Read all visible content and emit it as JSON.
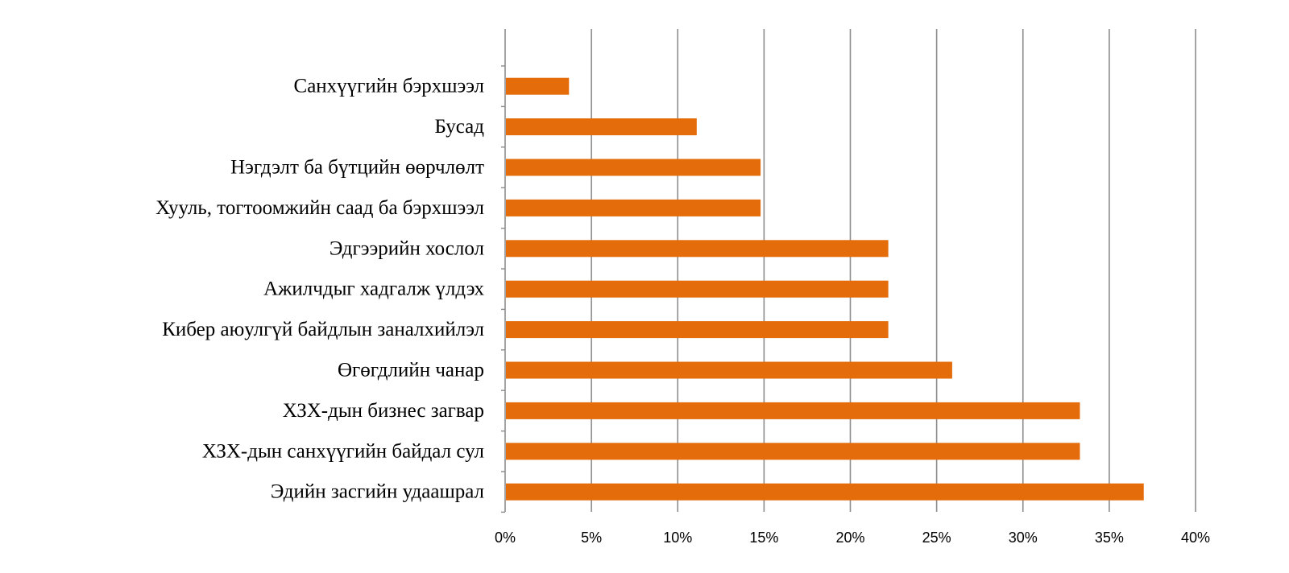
{
  "chart_data": {
    "type": "bar",
    "orientation": "horizontal",
    "title": "",
    "xlabel": "",
    "ylabel": "",
    "categories": [
      "Санхүүгийн бэрхшээл",
      "Бусад",
      "Нэгдэлт ба бүтцийн өөрчлөлт",
      "Хууль, тогтоомжийн саад ба бэрхшээл",
      "Эдгээрийн хослол",
      "Ажилчдыг хадгалж үлдэх",
      "Кибер аюулгүй байдлын заналхийлэл",
      "Өгөгдлийн чанар",
      "ХЗХ-дын бизнес загвар",
      "ХЗХ-дын санхүүгийн байдал сул",
      "Эдийн засгийн удаашрал"
    ],
    "series": [
      {
        "values": [
          3.7,
          11.1,
          14.8,
          14.8,
          22.2,
          22.2,
          22.2,
          25.9,
          33.3,
          33.3,
          37.0
        ],
        "color": "#e46c0a"
      }
    ],
    "xlim": [
      0,
      40
    ],
    "x_ticks": [
      "0%",
      "5%",
      "10%",
      "15%",
      "20%",
      "25%",
      "30%",
      "35%",
      "40%"
    ],
    "x_tick_values": [
      0,
      5,
      10,
      15,
      20,
      25,
      30,
      35,
      40
    ],
    "grid": "vertical",
    "legend": "none",
    "gridline_color": "#8c8c8c",
    "axis_color": "#8c8c8c"
  }
}
